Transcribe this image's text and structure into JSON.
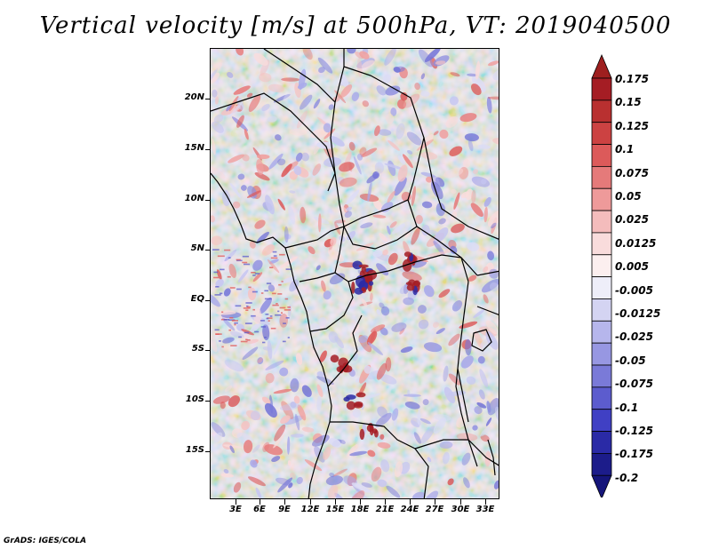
{
  "title": "Vertical velocity [m/s] at 500hPa, VT: 2019040500",
  "footer": "GrADS: IGES/COLA",
  "map": {
    "lat_labels": [
      "20N",
      "15N",
      "10N",
      "5N",
      "EQ",
      "5S",
      "10S",
      "15S"
    ],
    "lon_labels": [
      "3E",
      "6E",
      "9E",
      "12E",
      "15E",
      "18E",
      "21E",
      "24E",
      "27E",
      "30E",
      "33E"
    ]
  },
  "colorbar": {
    "labels": [
      "0.175",
      "0.15",
      "0.125",
      "0.1",
      "0.075",
      "0.05",
      "0.025",
      "0.0125",
      "0.005",
      "-0.005",
      "-0.0125",
      "-0.025",
      "-0.05",
      "-0.075",
      "-0.1",
      "-0.125",
      "-0.175",
      "-0.2"
    ],
    "colors": [
      "#a51d24",
      "#b93030",
      "#cc4242",
      "#dc5a5a",
      "#e57a7a",
      "#ee9a9a",
      "#f4bcbc",
      "#f9dcdc",
      "#fcefef",
      "#eeeef9",
      "#d4d4f2",
      "#b6b6ec",
      "#9797e2",
      "#7a7ad8",
      "#5c5cce",
      "#4040c4",
      "#2a2aa6",
      "#1c1c8a"
    ],
    "top_color": "#9e1f1f",
    "bottom_color": "#15157a"
  }
}
